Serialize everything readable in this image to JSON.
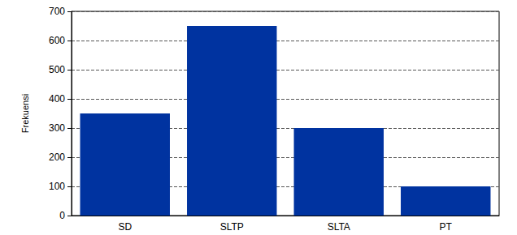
{
  "chart_data": {
    "type": "bar",
    "y_label": "Frekuensi",
    "categories": [
      "SD",
      "SLTP",
      "SLTA",
      "PT"
    ],
    "values": [
      350,
      650,
      300,
      100
    ],
    "color": "#0033a0",
    "ylim": [
      0,
      700
    ],
    "yticks": [
      0,
      100,
      200,
      300,
      400,
      500,
      600,
      700
    ],
    "grid": true
  }
}
